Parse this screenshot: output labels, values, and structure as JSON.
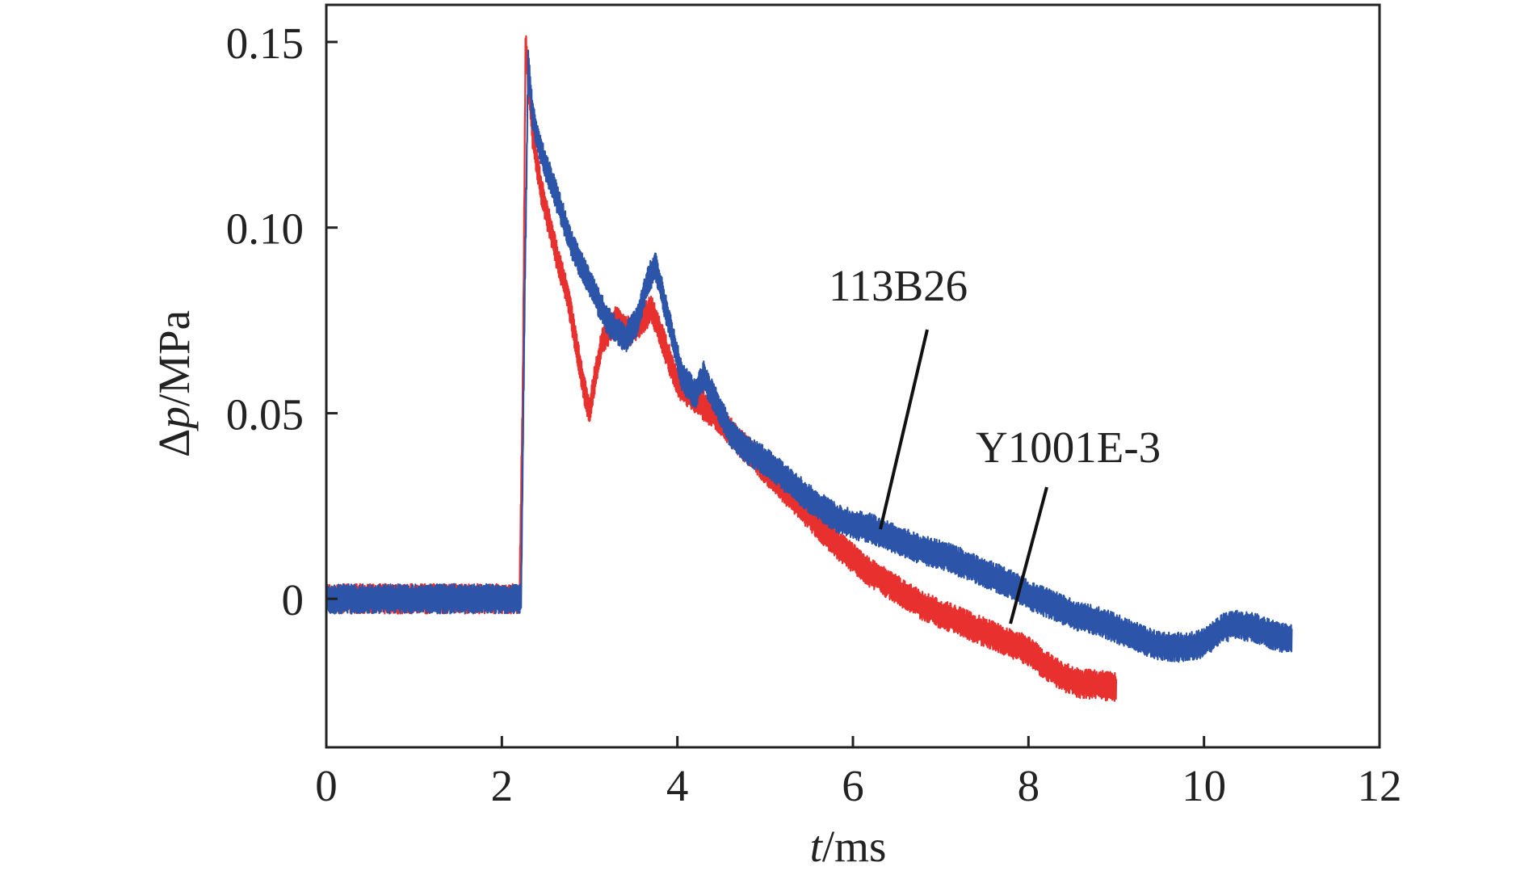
{
  "chart_data": {
    "type": "line",
    "title": "",
    "xlabel": {
      "italic": "t",
      "rest": "/ms"
    },
    "ylabel": {
      "prefix": "Δ",
      "italic": "p",
      "rest": "/MPa"
    },
    "xlim": [
      0,
      12
    ],
    "ylim": [
      -0.04,
      0.16
    ],
    "xticks": [
      0,
      2,
      4,
      6,
      8,
      10,
      12
    ],
    "xtick_labels": [
      "0",
      "2",
      "4",
      "6",
      "8",
      "10",
      "12"
    ],
    "yticks": [
      0,
      0.05,
      0.1,
      0.15
    ],
    "ytick_labels": [
      "0",
      "0.05",
      "0.10",
      "0.15"
    ],
    "grid": false,
    "legend": "none",
    "series": [
      {
        "name": "Y1001E-3",
        "color": "#e8302e",
        "noise": 0.004,
        "x": [
          0,
          2.2,
          2.24,
          2.27,
          2.3,
          2.35,
          2.45,
          2.55,
          2.65,
          2.75,
          2.85,
          2.95,
          3.0,
          3.05,
          3.15,
          3.3,
          3.45,
          3.6,
          3.7,
          3.8,
          3.9,
          4.0,
          4.2,
          4.4,
          4.6,
          4.8,
          5.0,
          5.2,
          5.4,
          5.6,
          5.8,
          6.0,
          6.2,
          6.4,
          6.6,
          6.8,
          7.0,
          7.2,
          7.4,
          7.6,
          7.8,
          8.0,
          8.2,
          8.4,
          8.6,
          8.8,
          9.0
        ],
        "y": [
          0,
          0,
          0.06,
          0.15,
          0.14,
          0.125,
          0.11,
          0.1,
          0.09,
          0.082,
          0.068,
          0.055,
          0.05,
          0.058,
          0.07,
          0.075,
          0.072,
          0.075,
          0.078,
          0.072,
          0.065,
          0.058,
          0.054,
          0.05,
          0.045,
          0.04,
          0.035,
          0.03,
          0.025,
          0.02,
          0.015,
          0.011,
          0.007,
          0.004,
          0.001,
          -0.002,
          -0.004,
          -0.006,
          -0.008,
          -0.01,
          -0.012,
          -0.014,
          -0.018,
          -0.021,
          -0.023,
          -0.023,
          -0.024
        ]
      },
      {
        "name": "113B26",
        "color": "#2c54a8",
        "noise": 0.004,
        "x": [
          0,
          2.22,
          2.26,
          2.3,
          2.35,
          2.45,
          2.6,
          2.8,
          3.0,
          3.2,
          3.4,
          3.55,
          3.65,
          3.75,
          3.85,
          3.95,
          4.05,
          4.2,
          4.3,
          4.4,
          4.6,
          4.8,
          5.0,
          5.2,
          5.4,
          5.6,
          5.8,
          6.0,
          6.2,
          6.4,
          6.6,
          6.8,
          7.0,
          7.2,
          7.4,
          7.6,
          7.8,
          8.0,
          8.2,
          8.4,
          8.6,
          8.8,
          9.0,
          9.2,
          9.4,
          9.6,
          9.8,
          10.0,
          10.2,
          10.4,
          10.6,
          10.8,
          11.0
        ],
        "y": [
          0,
          0,
          0.08,
          0.145,
          0.13,
          0.12,
          0.11,
          0.095,
          0.085,
          0.075,
          0.07,
          0.075,
          0.085,
          0.09,
          0.08,
          0.07,
          0.06,
          0.055,
          0.06,
          0.055,
          0.045,
          0.04,
          0.037,
          0.033,
          0.029,
          0.025,
          0.022,
          0.02,
          0.019,
          0.017,
          0.015,
          0.013,
          0.012,
          0.01,
          0.008,
          0.006,
          0.004,
          0.001,
          -0.001,
          -0.003,
          -0.005,
          -0.006,
          -0.008,
          -0.01,
          -0.012,
          -0.013,
          -0.013,
          -0.012,
          -0.008,
          -0.007,
          -0.008,
          -0.01,
          -0.011
        ]
      }
    ],
    "annotations": [
      {
        "text": "113B26",
        "series": "113B26",
        "point_x": 6.3,
        "point_y": 0.019
      },
      {
        "text": "Y1001E-3",
        "series": "Y1001E-3",
        "point_x": 7.85,
        "point_y": -0.007
      }
    ]
  }
}
